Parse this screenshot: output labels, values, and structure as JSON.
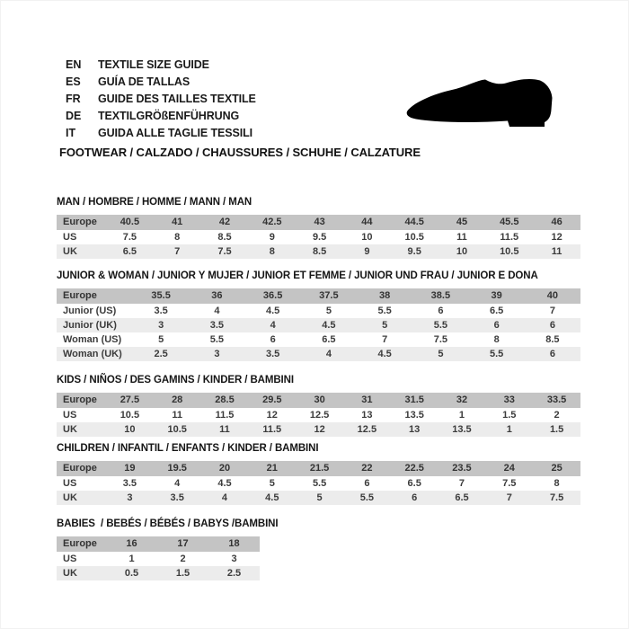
{
  "header": {
    "languages": [
      {
        "code": "EN",
        "text": "TEXTILE SIZE GUIDE"
      },
      {
        "code": "ES",
        "text": "GUÍA DE TALLAS"
      },
      {
        "code": "FR",
        "text": "GUIDE DES TAILLES TEXTILE"
      },
      {
        "code": "DE",
        "text": "TEXTILGRÖßENFÜHRUNG"
      },
      {
        "code": "IT",
        "text": "GUIDA ALLE TAGLIE TESSILI"
      }
    ],
    "category_title": "FOOTWEAR / CALZADO / CHAUSSURES / SCHUHE / CALZATURE",
    "shoe_icon": "dress-shoe-silhouette"
  },
  "colors": {
    "header_row_bg": "#c4c4c4",
    "alt_row_bg": "#ececec",
    "text": "#1a1a1a",
    "shoe": "#000000"
  },
  "tables": [
    {
      "key": "man",
      "title": "MAN / HOMBRE / HOMME / MANN / MAN",
      "rows": [
        {
          "label": "Europe",
          "header": true,
          "values": [
            "40.5",
            "41",
            "42",
            "42.5",
            "43",
            "44",
            "44.5",
            "45",
            "45.5",
            "46"
          ]
        },
        {
          "label": "US",
          "values": [
            "7.5",
            "8",
            "8.5",
            "9",
            "9.5",
            "10",
            "10.5",
            "11",
            "11.5",
            "12"
          ]
        },
        {
          "label": "UK",
          "values": [
            "6.5",
            "7",
            "7.5",
            "8",
            "8.5",
            "9",
            "9.5",
            "10",
            "10.5",
            "11"
          ]
        }
      ]
    },
    {
      "key": "junior-woman",
      "title": "JUNIOR & WOMAN / JUNIOR Y MUJER / JUNIOR ET FEMME / JUNIOR UND FRAU / JUNIOR E DONA",
      "rows": [
        {
          "label": "Europe",
          "header": true,
          "values": [
            "35.5",
            "36",
            "36.5",
            "37.5",
            "38",
            "38.5",
            "39",
            "40"
          ]
        },
        {
          "label": "Junior (US)",
          "values": [
            "3.5",
            "4",
            "4.5",
            "5",
            "5.5",
            "6",
            "6.5",
            "7"
          ]
        },
        {
          "label": "Junior (UK)",
          "values": [
            "3",
            "3.5",
            "4",
            "4.5",
            "5",
            "5.5",
            "6",
            "6"
          ]
        },
        {
          "label": "Woman (US)",
          "values": [
            "5",
            "5.5",
            "6",
            "6.5",
            "7",
            "7.5",
            "8",
            "8.5"
          ]
        },
        {
          "label": "Woman (UK)",
          "values": [
            "2.5",
            "3",
            "3.5",
            "4",
            "4.5",
            "5",
            "5.5",
            "6"
          ]
        }
      ]
    },
    {
      "key": "kids",
      "title": "KIDS / NIÑOS / DES GAMINS / KINDER / BAMBINI",
      "rows": [
        {
          "label": "Europe",
          "header": true,
          "values": [
            "27.5",
            "28",
            "28.5",
            "29.5",
            "30",
            "31",
            "31.5",
            "32",
            "33",
            "33.5"
          ]
        },
        {
          "label": "US",
          "values": [
            "10.5",
            "11",
            "11.5",
            "12",
            "12.5",
            "13",
            "13.5",
            "1",
            "1.5",
            "2"
          ]
        },
        {
          "label": "UK",
          "values": [
            "10",
            "10.5",
            "11",
            "11.5",
            "12",
            "12.5",
            "13",
            "13.5",
            "1",
            "1.5"
          ]
        }
      ]
    },
    {
      "key": "children",
      "title": "CHILDREN / INFANTIL / ENFANTS / KINDER / BAMBINI",
      "rows": [
        {
          "label": "Europe",
          "header": true,
          "values": [
            "19",
            "19.5",
            "20",
            "21",
            "21.5",
            "22",
            "22.5",
            "23.5",
            "24",
            "25"
          ]
        },
        {
          "label": "US",
          "values": [
            "3.5",
            "4",
            "4.5",
            "5",
            "5.5",
            "6",
            "6.5",
            "7",
            "7.5",
            "8"
          ]
        },
        {
          "label": "UK",
          "values": [
            "3",
            "3.5",
            "4",
            "4.5",
            "5",
            "5.5",
            "6",
            "6.5",
            "7",
            "7.5"
          ]
        }
      ]
    },
    {
      "key": "babies",
      "title": "BABIES  / BEBÉS / BÉBÉS / BABYS /BAMBINI",
      "rows": [
        {
          "label": "Europe",
          "header": true,
          "values": [
            "16",
            "17",
            "18"
          ]
        },
        {
          "label": "US",
          "values": [
            "1",
            "2",
            "3"
          ]
        },
        {
          "label": "UK",
          "values": [
            "0.5",
            "1.5",
            "2.5"
          ]
        }
      ]
    }
  ]
}
